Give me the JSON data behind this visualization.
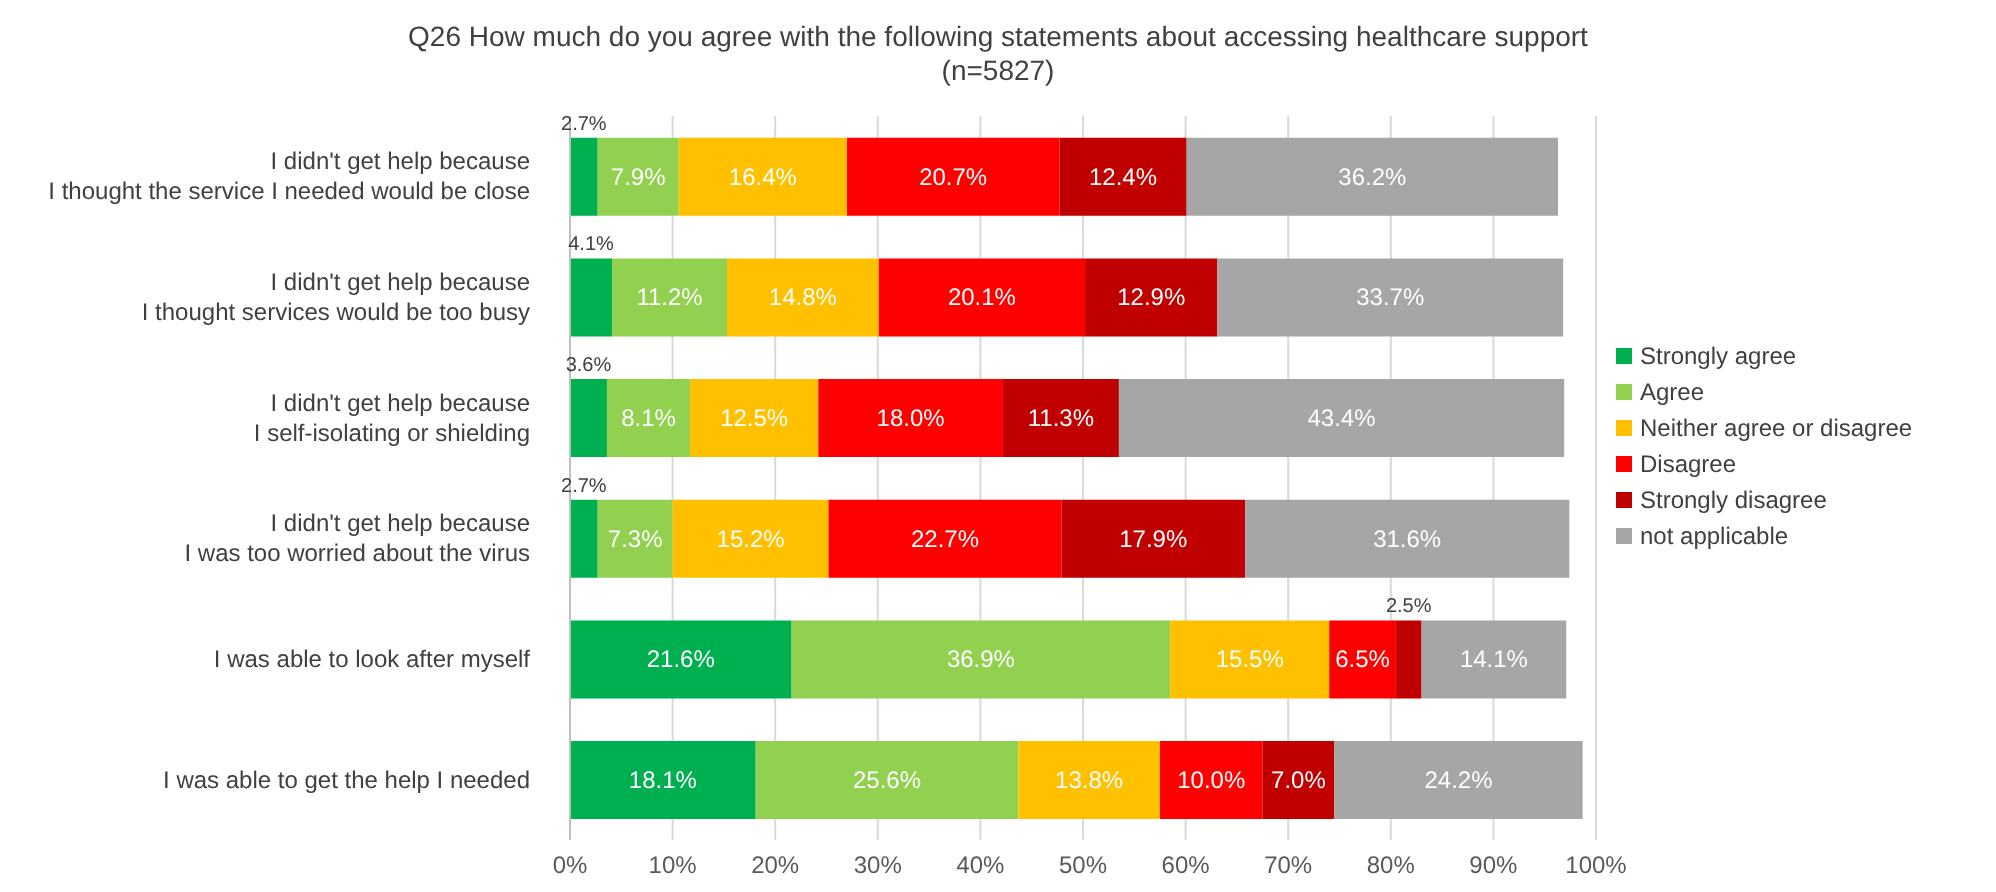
{
  "chart_data": {
    "type": "bar",
    "orientation": "horizontal",
    "stacked": true,
    "title": "Q26 How much do you agree with the following statements about accessing healthcare support",
    "subtitle": "(n=5827)",
    "categories": [
      "I didn't get help because\nI thought the service I needed would be close",
      "I didn't get help because\nI thought services would be too busy",
      "I didn't get help because\nI self-isolating or shielding",
      "I didn't get help because\nI was too worried about the virus",
      "I was able to look after myself",
      "I was able to get the help I needed"
    ],
    "series": [
      {
        "name": "Strongly agree",
        "color": "#00b050",
        "values": [
          2.7,
          4.1,
          3.6,
          2.7,
          21.6,
          18.1
        ],
        "value_labels": [
          "2.7%",
          "4.1%",
          "3.6%",
          "2.7%",
          "21.6%",
          "18.1%"
        ]
      },
      {
        "name": "Agree",
        "color": "#92d050",
        "values": [
          7.9,
          11.2,
          8.1,
          7.3,
          36.9,
          25.6
        ],
        "value_labels": [
          "7.9%",
          "11.2%",
          "8.1%",
          "7.3%",
          "36.9%",
          "25.6%"
        ]
      },
      {
        "name": "Neither agree or disagree",
        "color": "#ffc000",
        "values": [
          16.4,
          14.8,
          12.5,
          15.2,
          15.5,
          13.8
        ],
        "value_labels": [
          "16.4%",
          "14.8%",
          "12.5%",
          "15.2%",
          "15.5%",
          "13.8%"
        ]
      },
      {
        "name": "Disagree",
        "color": "#ff0000",
        "values": [
          20.7,
          20.1,
          18.0,
          22.7,
          6.5,
          10.0
        ],
        "value_labels": [
          "20.7%",
          "20.1%",
          "18.0%",
          "22.7%",
          "6.5%",
          "10.0%"
        ]
      },
      {
        "name": "Strongly disagree",
        "color": "#c00000",
        "values": [
          12.4,
          12.9,
          11.3,
          17.9,
          2.5,
          7.0
        ],
        "value_labels": [
          "12.4%",
          "12.9%",
          "11.3%",
          "17.9%",
          "2.5%",
          "7.0%"
        ]
      },
      {
        "name": "not applicable",
        "color": "#a6a6a6",
        "values": [
          36.2,
          33.7,
          43.4,
          31.6,
          14.1,
          24.2
        ],
        "value_labels": [
          "36.2%",
          "33.7%",
          "43.4%",
          "31.6%",
          "14.1%",
          "24.2%"
        ]
      }
    ],
    "xlim": [
      0,
      100
    ],
    "xticks": [
      {
        "value": 0,
        "label": "0%"
      },
      {
        "value": 10,
        "label": "10%"
      },
      {
        "value": 20,
        "label": "20%"
      },
      {
        "value": 30,
        "label": "30%"
      },
      {
        "value": 40,
        "label": "40%"
      },
      {
        "value": 50,
        "label": "50%"
      },
      {
        "value": 60,
        "label": "60%"
      },
      {
        "value": 70,
        "label": "70%"
      },
      {
        "value": 80,
        "label": "80%"
      },
      {
        "value": 90,
        "label": "90%"
      },
      {
        "value": 100,
        "label": "100%"
      }
    ],
    "grid": "x",
    "legend": "right"
  }
}
